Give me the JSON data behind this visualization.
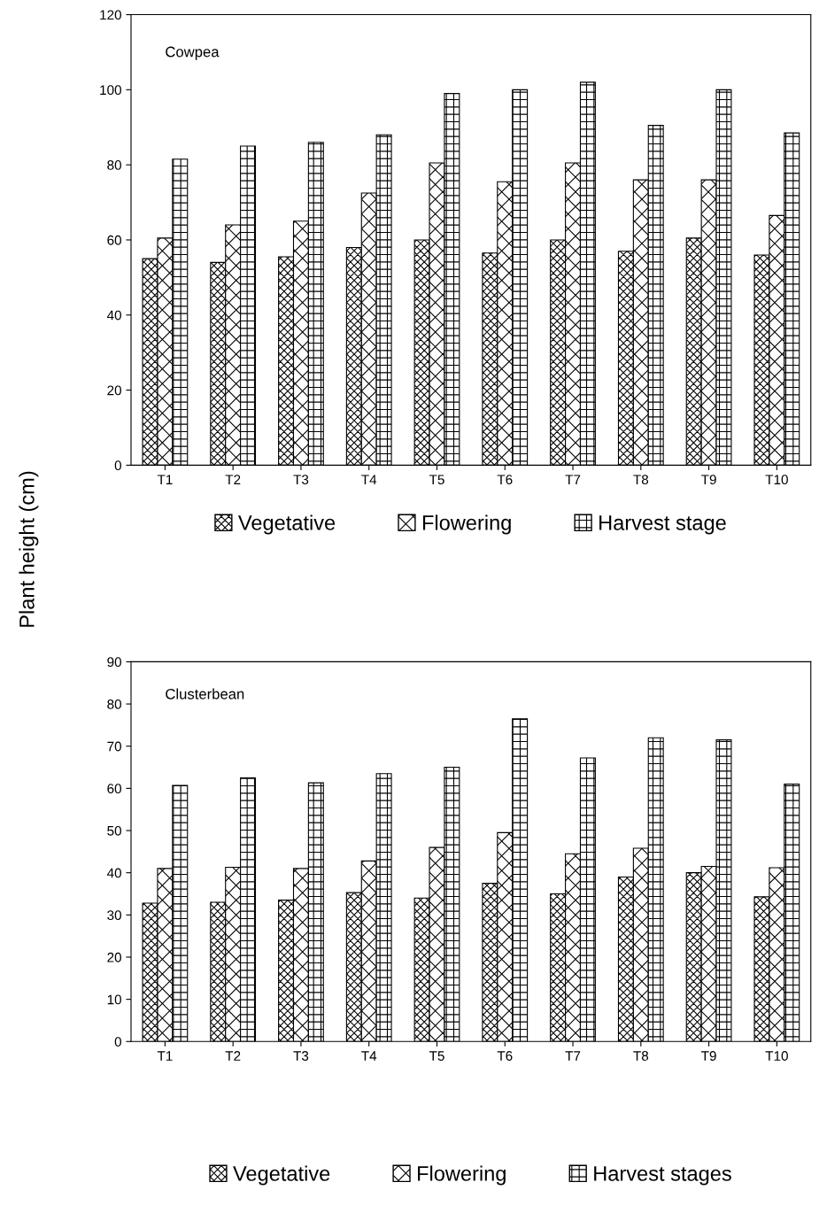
{
  "chart_data": [
    {
      "type": "bar",
      "ylabel": "Plant height (cm)",
      "annotations": [
        "Cowpea"
      ],
      "categories": [
        "T1",
        "T2",
        "T3",
        "T4",
        "T5",
        "T6",
        "T7",
        "T8",
        "T9",
        "T10"
      ],
      "series": [
        {
          "name": "Vegetative",
          "color": "#000000",
          "values": [
            55,
            54,
            55.5,
            58,
            60,
            56.5,
            60,
            57,
            60.5,
            56
          ]
        },
        {
          "name": "Flowering",
          "color": "#000000",
          "values": [
            60.5,
            64,
            65,
            72.5,
            80.5,
            75.5,
            80.5,
            76,
            76,
            66.5
          ]
        },
        {
          "name": "Harvest stage",
          "color": "#000000",
          "values": [
            81.5,
            85,
            86,
            88,
            99,
            100,
            102,
            90.5,
            100,
            88.5
          ]
        }
      ],
      "ylim": [
        0,
        120
      ],
      "yticks": [
        0,
        20,
        40,
        60,
        80,
        100,
        120
      ],
      "grid": false,
      "legend": "bottom"
    },
    {
      "type": "bar",
      "annotations": [
        "Clusterbean"
      ],
      "categories": [
        "T1",
        "T2",
        "T3",
        "T4",
        "T5",
        "T6",
        "T7",
        "T8",
        "T9",
        "T10"
      ],
      "series": [
        {
          "name": "Vegetative",
          "color": "#000000",
          "values": [
            32.8,
            33,
            33.5,
            35.3,
            34,
            37.5,
            35,
            39,
            40,
            34.3
          ]
        },
        {
          "name": "Flowering",
          "color": "#000000",
          "values": [
            41,
            41.3,
            41,
            42.8,
            46,
            49.5,
            44.5,
            45.8,
            41.5,
            41.2
          ]
        },
        {
          "name": "Harvest stages",
          "color": "#000000",
          "values": [
            60.7,
            62.5,
            61.3,
            63.5,
            65,
            76.5,
            67.2,
            72,
            71.5,
            61
          ]
        }
      ],
      "ylim": [
        0,
        90
      ],
      "yticks": [
        0,
        10,
        20,
        30,
        40,
        50,
        60,
        70,
        80,
        90
      ],
      "grid": false,
      "legend": "bottom"
    }
  ]
}
